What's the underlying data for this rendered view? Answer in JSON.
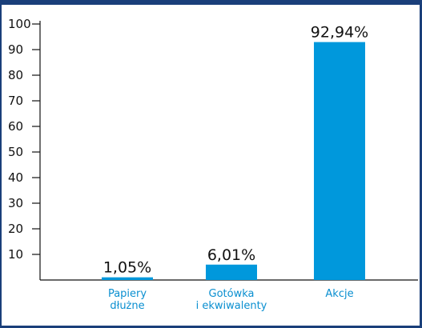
{
  "chart_data": {
    "type": "bar",
    "categories": [
      [
        "Papiery",
        "dłużne"
      ],
      [
        "Gotówka",
        "i ekwiwalenty"
      ],
      [
        "Akcje"
      ]
    ],
    "values": [
      1.05,
      6.01,
      92.94
    ],
    "data_labels": [
      "1,05%",
      "6,01%",
      "92,94%"
    ],
    "yticks": [
      "10",
      "20",
      "30",
      "40",
      "50",
      "60",
      "70",
      "80",
      "90",
      "100"
    ],
    "ylim": [
      0,
      100
    ],
    "grid": false,
    "legend": "none",
    "colors": {
      "bar": "#0098dc",
      "category_label": "#0a8fd0",
      "axis": "#111111",
      "frame": "#1a3f7a"
    }
  }
}
